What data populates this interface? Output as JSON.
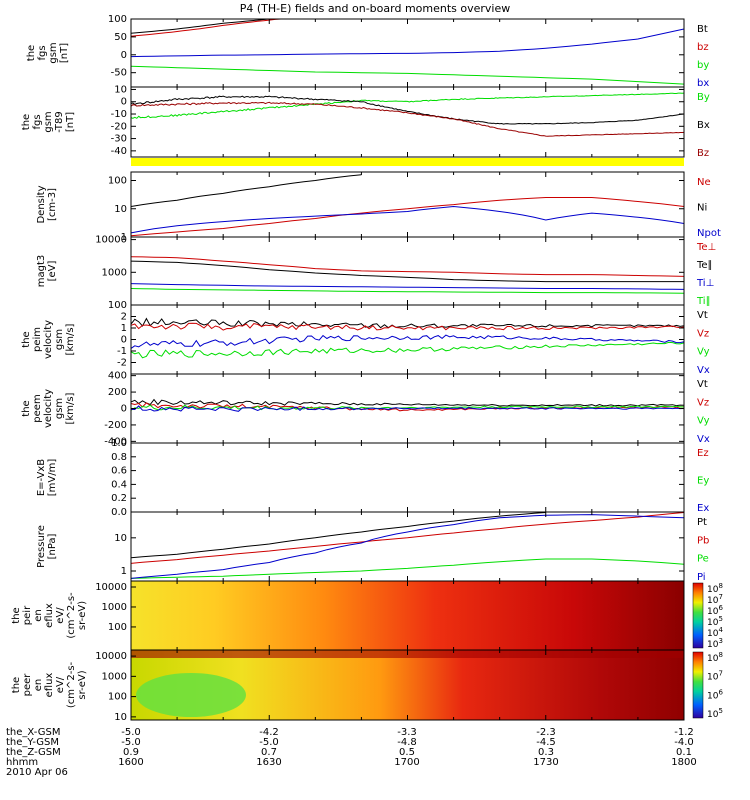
{
  "title": "P4 (TH-E) fields and on-board moments overview",
  "date": "2010 Apr 06",
  "colors": {
    "black": "#000000",
    "red": "#cc0000",
    "green": "#00dd00",
    "blue": "#0000cc",
    "darkred": "#990000",
    "yellow": "#ffff00"
  },
  "chart_data": [
    {
      "id": "fgs-gsm",
      "type": "line",
      "ylabel": [
        "the",
        "fgs",
        "gsm",
        "[nT]"
      ],
      "ylim": [
        -90,
        100
      ],
      "yticks": [
        100,
        50,
        0,
        -50
      ],
      "legend": [
        {
          "name": "Bt",
          "color": "#000000"
        },
        {
          "name": "bz",
          "color": "#cc0000"
        },
        {
          "name": "by",
          "color": "#00dd00"
        },
        {
          "name": "bx",
          "color": "#0000cc"
        }
      ],
      "series": [
        {
          "name": "Bt",
          "color": "#000000",
          "x": [
            1600,
            1605,
            1610,
            1615,
            1620,
            1625,
            1630,
            1635,
            1640
          ],
          "y": [
            60,
            66,
            72,
            80,
            88,
            94,
            100,
            106,
            112
          ]
        },
        {
          "name": "bz",
          "color": "#cc0000",
          "x": [
            1600,
            1605,
            1610,
            1615,
            1620,
            1625,
            1630,
            1635,
            1640
          ],
          "y": [
            52,
            58,
            65,
            73,
            82,
            90,
            97,
            104,
            110
          ]
        },
        {
          "name": "by",
          "color": "#00dd00",
          "x": [
            1600,
            1610,
            1620,
            1630,
            1640,
            1650,
            1700,
            1710,
            1720,
            1730,
            1740,
            1750,
            1800
          ],
          "y": [
            -32,
            -36,
            -40,
            -44,
            -48,
            -50,
            -52,
            -56,
            -60,
            -64,
            -68,
            -75,
            -82
          ]
        },
        {
          "name": "bx",
          "color": "#0000cc",
          "x": [
            1600,
            1610,
            1620,
            1630,
            1640,
            1650,
            1700,
            1710,
            1720,
            1730,
            1740,
            1750,
            1800
          ],
          "y": [
            -5,
            -3,
            -1,
            0,
            2,
            3,
            4,
            6,
            10,
            18,
            30,
            44,
            72
          ]
        }
      ]
    },
    {
      "id": "fgs-gsm-minus-t89",
      "type": "line",
      "ylabel": [
        "the",
        "fgs",
        "gsm",
        "-T89",
        "[nT]"
      ],
      "ylim": [
        -45,
        12
      ],
      "yticks": [
        10,
        0,
        -10,
        -20,
        -30,
        -40
      ],
      "legend": [
        {
          "name": "By",
          "color": "#00dd00"
        },
        {
          "name": "Bx",
          "color": "#000000"
        },
        {
          "name": "Bz",
          "color": "#990000"
        }
      ],
      "series": [
        {
          "name": "By",
          "color": "#00dd00",
          "x": [
            1600,
            1610,
            1620,
            1630,
            1640,
            1650,
            1700,
            1710,
            1720,
            1730,
            1740,
            1750,
            1800
          ],
          "y": [
            -13,
            -11,
            -8,
            -5,
            -2,
            1,
            0,
            2,
            3,
            4,
            5,
            6,
            7
          ]
        },
        {
          "name": "Bx",
          "color": "#000000",
          "x": [
            1600,
            1610,
            1620,
            1630,
            1640,
            1650,
            1700,
            1710,
            1720,
            1730,
            1740,
            1750,
            1800
          ],
          "y": [
            -2,
            2,
            4,
            4,
            2,
            0,
            -8,
            -14,
            -18,
            -18,
            -17,
            -15,
            -10
          ]
        },
        {
          "name": "Bz",
          "color": "#990000",
          "x": [
            1600,
            1610,
            1620,
            1630,
            1640,
            1650,
            1700,
            1710,
            1720,
            1730,
            1740,
            1750,
            1800
          ],
          "y": [
            -3,
            -2,
            -1,
            -1,
            -2,
            -5,
            -9,
            -14,
            -22,
            -28,
            -27,
            -26,
            -25
          ]
        }
      ]
    },
    {
      "id": "density",
      "type": "line",
      "scale": "log",
      "ylabel": [
        "Density",
        "[cm-3]"
      ],
      "ylim": [
        1,
        200
      ],
      "yticks": [
        100,
        10,
        1
      ],
      "legend": [
        {
          "name": "Ne",
          "color": "#cc0000"
        },
        {
          "name": "Ni",
          "color": "#000000"
        },
        {
          "name": "Npot",
          "color": "#0000cc"
        }
      ],
      "series": [
        {
          "name": "Ni",
          "color": "#000000",
          "x": [
            1600,
            1610,
            1620,
            1630,
            1640,
            1650
          ],
          "y": [
            12,
            20,
            35,
            60,
            100,
            160
          ]
        },
        {
          "name": "Ne",
          "color": "#cc0000",
          "x": [
            1600,
            1610,
            1620,
            1630,
            1640,
            1650,
            1700,
            1710,
            1720,
            1730,
            1740,
            1750,
            1800
          ],
          "y": [
            1.1,
            1.5,
            2,
            3,
            4.5,
            7,
            10,
            14,
            20,
            25,
            25,
            18,
            12
          ]
        },
        {
          "name": "Npot",
          "color": "#0000cc",
          "x": [
            1600,
            1610,
            1620,
            1630,
            1640,
            1650,
            1700,
            1710,
            1720,
            1730,
            1740,
            1750,
            1800
          ],
          "y": [
            1.4,
            2.5,
            3.5,
            4.5,
            5.5,
            6.5,
            8,
            12,
            8,
            4,
            7,
            5,
            3
          ]
        }
      ]
    },
    {
      "id": "magt3",
      "type": "line",
      "scale": "log",
      "ylabel": [
        "magt3",
        "[eV]"
      ],
      "ylim": [
        100,
        12000
      ],
      "yticks": [
        10000,
        1000,
        100
      ],
      "legend": [
        {
          "name": "Te⊥",
          "color": "#cc0000"
        },
        {
          "name": "Te∥",
          "color": "#000000"
        },
        {
          "name": "Ti⊥",
          "color": "#0000cc"
        },
        {
          "name": "Ti∥",
          "color": "#00dd00"
        }
      ],
      "series": [
        {
          "name": "Te⊥",
          "color": "#cc0000",
          "x": [
            1600,
            1610,
            1620,
            1630,
            1640,
            1650,
            1700,
            1710,
            1720,
            1730,
            1740,
            1750,
            1800
          ],
          "y": [
            3000,
            2800,
            2200,
            1700,
            1300,
            1100,
            1050,
            1000,
            900,
            850,
            850,
            800,
            750
          ]
        },
        {
          "name": "Te∥",
          "color": "#000000",
          "x": [
            1600,
            1610,
            1620,
            1630,
            1640,
            1650,
            1700,
            1710,
            1720,
            1730,
            1740,
            1750,
            1800
          ],
          "y": [
            2200,
            2000,
            1600,
            1200,
            950,
            800,
            700,
            600,
            550,
            520,
            520,
            520,
            520
          ]
        },
        {
          "name": "Ti⊥",
          "color": "#0000cc",
          "x": [
            1600,
            1610,
            1620,
            1630,
            1640,
            1650,
            1700,
            1710,
            1720,
            1730,
            1740,
            1750,
            1800
          ],
          "y": [
            450,
            420,
            400,
            380,
            370,
            360,
            350,
            340,
            330,
            320,
            320,
            310,
            300
          ]
        },
        {
          "name": "Ti∥",
          "color": "#00dd00",
          "x": [
            1600,
            1610,
            1620,
            1630,
            1640,
            1650,
            1700,
            1710,
            1720,
            1730,
            1740,
            1750,
            1800
          ],
          "y": [
            320,
            300,
            290,
            280,
            270,
            260,
            255,
            250,
            245,
            240,
            240,
            235,
            230
          ]
        }
      ]
    },
    {
      "id": "peim-velocity",
      "type": "line",
      "ylabel": [
        "the",
        "peim",
        "velocity",
        "gsm",
        "[km/s]"
      ],
      "ylim": [
        -3,
        3
      ],
      "yticks": [
        2,
        1,
        0,
        -1,
        -2
      ],
      "legend": [
        {
          "name": "Vt",
          "color": "#000000"
        },
        {
          "name": "Vz",
          "color": "#cc0000"
        },
        {
          "name": "Vy",
          "color": "#00dd00"
        },
        {
          "name": "Vx",
          "color": "#0000cc"
        }
      ],
      "series": [
        {
          "name": "Vt",
          "color": "#000000",
          "x": [
            1600,
            1620,
            1640,
            1700,
            1720,
            1740,
            1800
          ],
          "y": [
            1.5,
            1.4,
            1.3,
            1.2,
            1.2,
            1.2,
            1.2
          ]
        },
        {
          "name": "Vz",
          "color": "#cc0000",
          "x": [
            1600,
            1620,
            1640,
            1700,
            1720,
            1740,
            1800
          ],
          "y": [
            1.2,
            1.1,
            1.1,
            1.0,
            1.0,
            1.0,
            1.1
          ]
        },
        {
          "name": "Vy",
          "color": "#00dd00",
          "x": [
            1600,
            1620,
            1640,
            1700,
            1720,
            1740,
            1800
          ],
          "y": [
            -1.3,
            -1.2,
            -1.0,
            -0.9,
            -0.7,
            -0.5,
            -0.3
          ]
        },
        {
          "name": "Vx",
          "color": "#0000cc",
          "x": [
            1600,
            1620,
            1640,
            1700,
            1720,
            1740,
            1800
          ],
          "y": [
            -0.5,
            -0.3,
            0.1,
            0.2,
            0.2,
            0.0,
            -0.2
          ]
        }
      ]
    },
    {
      "id": "peem-velocity",
      "type": "line",
      "ylabel": [
        "the",
        "peem",
        "velocity",
        "gsm",
        "[km/s]"
      ],
      "ylim": [
        -420,
        420
      ],
      "yticks": [
        400,
        200,
        0,
        -200,
        -400
      ],
      "legend": [
        {
          "name": "Vt",
          "color": "#000000"
        },
        {
          "name": "Vz",
          "color": "#cc0000"
        },
        {
          "name": "Vy",
          "color": "#00dd00"
        },
        {
          "name": "Vx",
          "color": "#0000cc"
        }
      ],
      "series": [
        {
          "name": "Vt",
          "color": "#000000",
          "x": [
            1600,
            1620,
            1640,
            1700,
            1720,
            1740,
            1800
          ],
          "y": [
            80,
            70,
            60,
            50,
            40,
            40,
            40
          ]
        },
        {
          "name": "Vz",
          "color": "#cc0000",
          "x": [
            1600,
            1620,
            1640,
            1700,
            1720,
            1740,
            1800
          ],
          "y": [
            40,
            30,
            10,
            -20,
            0,
            10,
            20
          ]
        },
        {
          "name": "Vy",
          "color": "#00dd00",
          "x": [
            1600,
            1620,
            1640,
            1700,
            1720,
            1740,
            1800
          ],
          "y": [
            10,
            10,
            5,
            10,
            20,
            20,
            20
          ]
        },
        {
          "name": "Vx",
          "color": "#0000cc",
          "x": [
            1600,
            1620,
            1640,
            1700,
            1720,
            1740,
            1800
          ],
          "y": [
            0,
            -10,
            0,
            0,
            0,
            0,
            0
          ]
        }
      ]
    },
    {
      "id": "e-field",
      "type": "line",
      "ylabel": [
        "E=-VxB",
        "[mV/m]"
      ],
      "ylim": [
        0,
        1
      ],
      "yticks": [
        1.0,
        0.8,
        0.6,
        0.4,
        0.2,
        0.0
      ],
      "legend": [
        {
          "name": "Ez",
          "color": "#cc0000"
        },
        {
          "name": "Ey",
          "color": "#00dd00"
        },
        {
          "name": "Ex",
          "color": "#0000cc"
        }
      ],
      "series": []
    },
    {
      "id": "pressure",
      "type": "line",
      "scale": "log",
      "ylabel": [
        "Pressure",
        "[nPa]"
      ],
      "ylim": [
        0.5,
        60
      ],
      "yticks": [
        10,
        1
      ],
      "legend": [
        {
          "name": "Pt",
          "color": "#000000"
        },
        {
          "name": "Pb",
          "color": "#cc0000"
        },
        {
          "name": "Pe",
          "color": "#00dd00"
        },
        {
          "name": "Pi",
          "color": "#0000cc"
        }
      ],
      "series": [
        {
          "name": "Pt",
          "color": "#000000",
          "x": [
            1600,
            1610,
            1620,
            1630,
            1640,
            1650,
            1700,
            1710,
            1720,
            1730
          ],
          "y": [
            2.5,
            3.2,
            4.5,
            6.5,
            10,
            15,
            22,
            32,
            45,
            58
          ]
        },
        {
          "name": "Pb",
          "color": "#cc0000",
          "x": [
            1600,
            1610,
            1620,
            1630,
            1640,
            1650,
            1700,
            1710,
            1720,
            1730,
            1740,
            1750,
            1800
          ],
          "y": [
            1.7,
            2.2,
            3,
            4,
            5.5,
            7.5,
            10,
            14,
            19,
            26,
            33,
            42,
            58
          ]
        },
        {
          "name": "Pe",
          "color": "#00dd00",
          "x": [
            1600,
            1610,
            1620,
            1630,
            1640,
            1650,
            1700,
            1710,
            1720,
            1730,
            1740,
            1750,
            1800
          ],
          "y": [
            0.6,
            0.65,
            0.7,
            0.8,
            0.9,
            1.0,
            1.2,
            1.5,
            1.9,
            2.3,
            2.3,
            2.0,
            1.6
          ]
        },
        {
          "name": "Pi",
          "color": "#0000cc",
          "x": [
            1600,
            1610,
            1620,
            1630,
            1640,
            1650,
            1700,
            1710,
            1720,
            1730,
            1740,
            1750,
            1800
          ],
          "y": [
            0.6,
            0.8,
            1.1,
            1.8,
            3.5,
            7,
            15,
            25,
            40,
            48,
            50,
            45,
            40
          ]
        }
      ]
    },
    {
      "id": "peir-en-eflux",
      "type": "heatmap",
      "ylabel": [
        "the",
        "peir",
        "en",
        "eflux",
        "eV/",
        "(cm^2-s-",
        "sr-eV)"
      ],
      "yticks": [
        10000,
        1000,
        100
      ],
      "colorbar_ticks": [
        "10^8",
        "10^7",
        "10^6",
        "10^5",
        "10^4",
        "10^3"
      ]
    },
    {
      "id": "peer-en-eflux",
      "type": "heatmap",
      "ylabel": [
        "the",
        "peer",
        "en",
        "eflux",
        "eV/",
        "(cm^2-s-",
        "sr-eV)"
      ],
      "yticks": [
        10000,
        1000,
        100,
        10
      ],
      "colorbar_ticks": [
        "10^8",
        "10^7",
        "10^6",
        "10^5"
      ]
    }
  ],
  "x_axis": {
    "labels": [
      "the_X-GSM",
      "the_Y-GSM",
      "the_Z-GSM",
      "hhmm"
    ],
    "rows": [
      [
        "-5.0",
        "-4.2",
        "-3.3",
        "-2.3",
        "-1.2"
      ],
      [
        "-5.0",
        "-5.0",
        "-4.8",
        "-4.5",
        "-4.0"
      ],
      [
        "0.9",
        "0.7",
        "0.5",
        "0.3",
        "0.1"
      ],
      [
        "1600",
        "1630",
        "1700",
        "1730",
        "1800"
      ]
    ]
  }
}
